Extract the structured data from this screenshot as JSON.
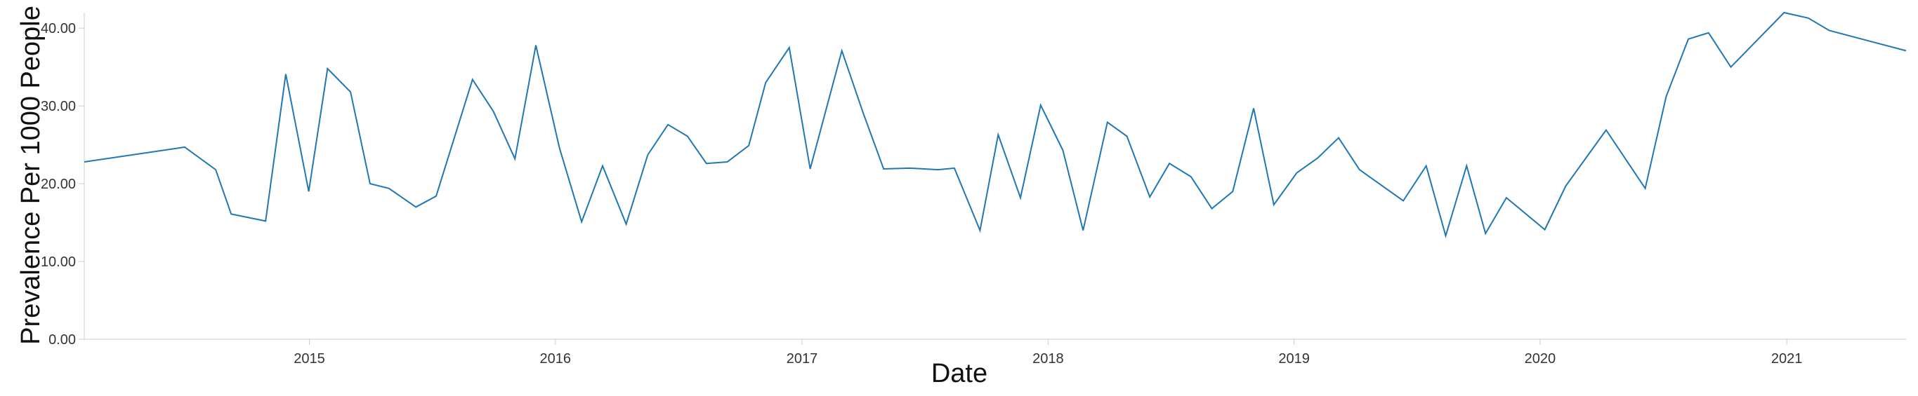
{
  "chart_data": {
    "type": "line",
    "xlabel": "Date",
    "ylabel": "Prevalence Per 1000 People",
    "ylim": [
      0,
      42
    ],
    "yticks": [
      "0.00",
      "10.00",
      "20.00",
      "30.00",
      "40.00"
    ],
    "xticks": [
      "2015",
      "2016",
      "2017",
      "2018",
      "2019",
      "2020",
      "2021"
    ],
    "xlim": [
      "2014-02-01",
      "2021-06-27"
    ],
    "grid": false,
    "line_color": "#1f77b4",
    "series": [
      {
        "x": [
          "2014-02-01",
          "2014-06-30",
          "2014-08-15",
          "2014-09-07",
          "2014-10-28",
          "2014-11-27",
          "2014-12-31",
          "2015-01-28",
          "2015-03-03",
          "2015-04-01",
          "2015-04-29",
          "2015-06-08",
          "2015-07-08",
          "2015-08-31",
          "2015-10-01",
          "2015-11-02",
          "2015-12-03",
          "2016-01-07",
          "2016-02-09",
          "2016-03-11",
          "2016-04-15",
          "2016-05-17",
          "2016-06-16",
          "2016-07-15",
          "2016-08-12",
          "2016-09-12",
          "2016-10-14",
          "2016-11-08",
          "2016-12-13",
          "2017-01-13",
          "2017-03-01",
          "2017-04-02",
          "2017-05-02",
          "2017-06-10",
          "2017-07-22",
          "2017-08-15",
          "2017-09-22",
          "2017-10-19",
          "2017-11-21",
          "2017-12-21",
          "2018-01-23",
          "2018-02-22",
          "2018-03-30",
          "2018-04-28",
          "2018-06-01",
          "2018-06-30",
          "2018-08-01",
          "2018-09-01",
          "2018-10-02",
          "2018-11-02",
          "2018-12-02",
          "2019-01-05",
          "2019-02-05",
          "2019-03-08",
          "2019-04-08",
          "2019-06-12",
          "2019-07-16",
          "2019-08-14",
          "2019-09-14",
          "2019-10-12",
          "2019-11-12",
          "2020-01-08",
          "2020-02-08",
          "2020-04-08",
          "2020-06-05",
          "2020-07-06",
          "2020-08-08",
          "2020-09-07",
          "2020-10-10",
          "2020-12-28",
          "2021-02-02",
          "2021-03-05",
          "2021-06-27"
        ],
        "y": [
          22.8,
          24.7,
          21.8,
          16.1,
          15.2,
          34.1,
          19.0,
          34.8,
          31.8,
          20.0,
          19.4,
          17.0,
          18.4,
          33.4,
          29.3,
          23.2,
          37.8,
          24.6,
          15.1,
          22.3,
          14.8,
          23.7,
          27.6,
          26.1,
          22.6,
          22.8,
          24.9,
          33.0,
          37.5,
          21.9,
          37.1,
          29.0,
          21.9,
          22.0,
          21.8,
          22.0,
          14.0,
          26.3,
          18.2,
          30.1,
          24.3,
          14.0,
          27.9,
          26.1,
          18.3,
          22.6,
          20.9,
          16.8,
          19.0,
          29.7,
          17.3,
          21.4,
          23.3,
          25.9,
          21.8,
          17.8,
          22.3,
          13.3,
          22.3,
          13.6,
          18.2,
          14.1,
          19.7,
          26.9,
          19.4,
          31.2,
          38.6,
          39.4,
          35.0,
          42.0,
          41.3,
          39.7,
          37.1
        ]
      }
    ]
  }
}
